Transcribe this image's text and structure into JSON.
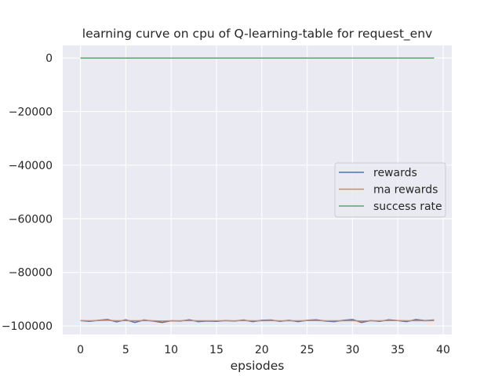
{
  "chart_data": {
    "type": "line",
    "title": "learning curve on cpu of Q-learning-table for request_env",
    "xlabel": "epsiodes",
    "ylabel": "",
    "xlim": [
      -1.95,
      40.95
    ],
    "ylim": [
      -103200,
      4700
    ],
    "x_ticks": [
      0,
      5,
      10,
      15,
      20,
      25,
      30,
      35,
      40
    ],
    "x_tick_labels": [
      "0",
      "5",
      "10",
      "15",
      "20",
      "25",
      "30",
      "35",
      "40"
    ],
    "y_ticks": [
      0,
      -20000,
      -40000,
      -60000,
      -80000,
      -100000
    ],
    "y_tick_labels": [
      "0",
      "−20000",
      "−40000",
      "−60000",
      "−80000",
      "−100000"
    ],
    "grid": true,
    "legend_position": "center-right",
    "x": [
      0,
      1,
      2,
      3,
      4,
      5,
      6,
      7,
      8,
      9,
      10,
      11,
      12,
      13,
      14,
      15,
      16,
      17,
      18,
      19,
      20,
      21,
      22,
      23,
      24,
      25,
      26,
      27,
      28,
      29,
      30,
      31,
      32,
      33,
      34,
      35,
      36,
      37,
      38,
      39
    ],
    "series": [
      {
        "name": "rewards",
        "color": "#4c72b0",
        "values": [
          -98000,
          -98300,
          -97900,
          -97600,
          -98500,
          -97700,
          -98700,
          -97800,
          -98200,
          -98700,
          -98100,
          -98200,
          -97700,
          -98400,
          -98200,
          -98300,
          -98000,
          -98200,
          -97800,
          -98400,
          -97900,
          -97800,
          -98300,
          -97900,
          -98400,
          -97900,
          -97700,
          -98200,
          -98400,
          -97900,
          -97600,
          -98700,
          -98000,
          -98300,
          -97700,
          -98000,
          -98400,
          -97600,
          -98000,
          -97800
        ]
      },
      {
        "name": "ma rewards",
        "color": "#dd8452",
        "values": [
          -98000,
          -98100,
          -98000,
          -97900,
          -98100,
          -98000,
          -98100,
          -98000,
          -98100,
          -98200,
          -98100,
          -98100,
          -98000,
          -98100,
          -98100,
          -98100,
          -98100,
          -98100,
          -98000,
          -98100,
          -98100,
          -98000,
          -98100,
          -98100,
          -98100,
          -98000,
          -98000,
          -98100,
          -98100,
          -98100,
          -98000,
          -98200,
          -98100,
          -98100,
          -98000,
          -98000,
          -98100,
          -98000,
          -98100,
          -98000
        ]
      },
      {
        "name": "success rate",
        "color": "#55a868",
        "values": [
          0,
          0,
          0,
          0,
          0,
          0,
          0,
          0,
          0,
          0,
          0,
          0,
          0,
          0,
          0,
          0,
          0,
          0,
          0,
          0,
          0,
          0,
          0,
          0,
          0,
          0,
          0,
          0,
          0,
          0,
          0,
          0,
          0,
          0,
          0,
          0,
          0,
          0,
          0,
          0
        ]
      }
    ],
    "colors": {
      "plot_background": "#eaeaf2",
      "grid": "#ffffff",
      "text": "#262626"
    }
  }
}
